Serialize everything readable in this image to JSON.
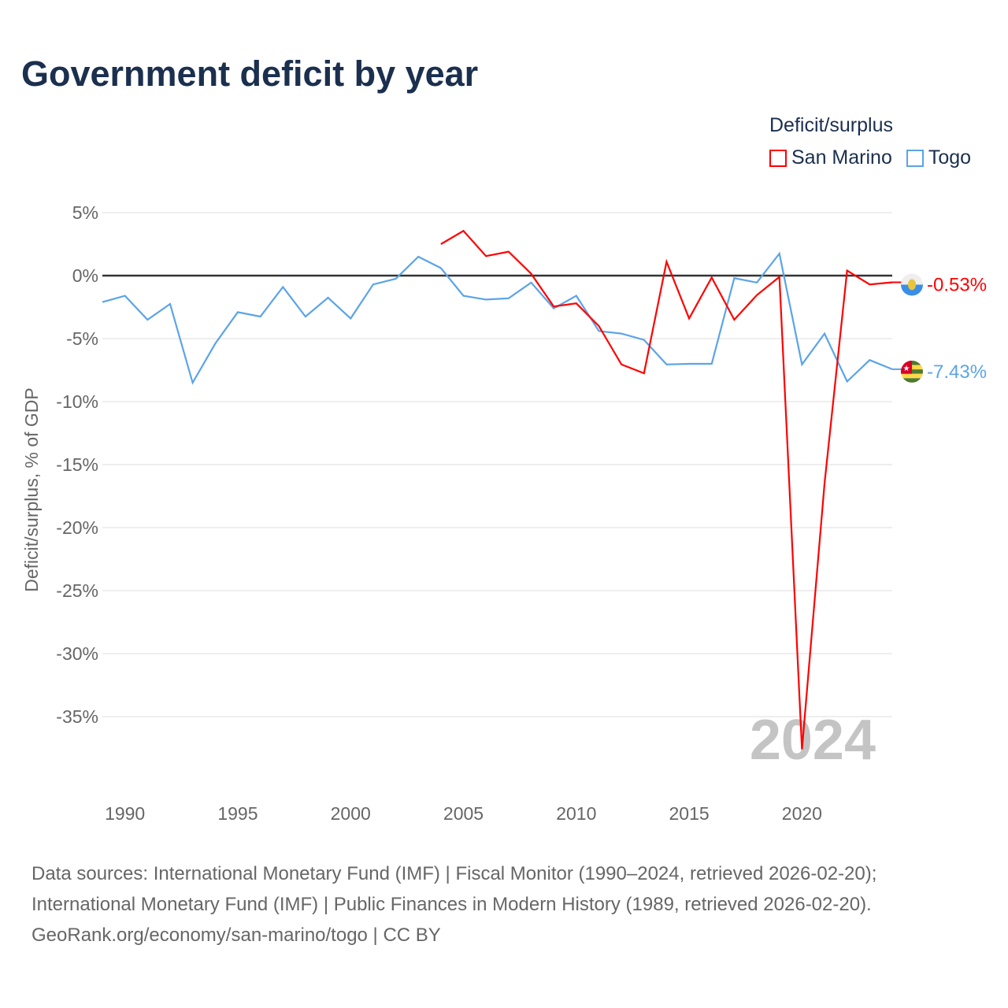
{
  "title": "Government deficit by year",
  "legend": {
    "title": "Deficit/surplus",
    "items": [
      "San Marino",
      "Togo"
    ]
  },
  "footer": {
    "line1": "Data sources: International Monetary Fund (IMF) | Fiscal Monitor (1990–2024, retrieved 2026-02-20);",
    "line2": "International Monetary Fund (IMF) | Public Finances in Modern History (1989, retrieved 2026-02-20).",
    "line3": "GeoRank.org/economy/san-marino/togo | CC BY"
  },
  "chart_data": {
    "type": "line",
    "title": "Government deficit by year",
    "xlabel": "",
    "ylabel": "Deficit/surplus, % of GDP",
    "xlim": [
      1989,
      2024
    ],
    "ylim": [
      -40,
      5
    ],
    "yticks": [
      5,
      0,
      -5,
      -10,
      -15,
      -20,
      -25,
      -30,
      -35
    ],
    "ytick_labels": [
      "5%",
      "0%",
      "-5%",
      "-10%",
      "-15%",
      "-20%",
      "-25%",
      "-30%",
      "-35%"
    ],
    "xticks": [
      1990,
      1995,
      2000,
      2005,
      2010,
      2015,
      2020
    ],
    "xtick_labels": [
      "1990",
      "1995",
      "2000",
      "2005",
      "2010",
      "2015",
      "2020"
    ],
    "year_watermark": "2024",
    "grid": true,
    "legend_position": "top-right",
    "series": [
      {
        "name": "San Marino",
        "color": "#ff0000",
        "end_label": "-0.53%",
        "flag": "san-marino-flag",
        "x": [
          2004,
          2005,
          2006,
          2007,
          2008,
          2009,
          2010,
          2011,
          2012,
          2013,
          2014,
          2015,
          2016,
          2017,
          2018,
          2019,
          2020,
          2021,
          2022,
          2023,
          2024
        ],
        "values": [
          2.5,
          3.55,
          1.55,
          1.9,
          0.15,
          -2.45,
          -2.2,
          -4.0,
          -7.05,
          -7.75,
          1.1,
          -3.4,
          -0.15,
          -3.5,
          -1.55,
          -0.1,
          -37.6,
          -16.5,
          0.4,
          -0.7,
          -0.53
        ]
      },
      {
        "name": "Togo",
        "color": "#5ba4e8",
        "end_label": "-7.43%",
        "flag": "togo-flag",
        "x": [
          1989,
          1990,
          1991,
          1992,
          1993,
          1994,
          1995,
          1996,
          1997,
          1998,
          1999,
          2000,
          2001,
          2002,
          2003,
          2004,
          2005,
          2006,
          2007,
          2008,
          2009,
          2010,
          2011,
          2012,
          2013,
          2014,
          2015,
          2016,
          2017,
          2018,
          2019,
          2020,
          2021,
          2022,
          2023,
          2024
        ],
        "values": [
          -2.1,
          -1.6,
          -3.5,
          -2.25,
          -8.5,
          -5.4,
          -2.9,
          -3.25,
          -0.9,
          -3.25,
          -1.75,
          -3.4,
          -0.7,
          -0.25,
          1.5,
          0.6,
          -1.6,
          -1.9,
          -1.8,
          -0.55,
          -2.6,
          -1.6,
          -4.4,
          -4.6,
          -5.1,
          -7.05,
          -7.0,
          -7.0,
          -0.2,
          -0.55,
          1.75,
          -7.05,
          -4.6,
          -8.4,
          -6.7,
          -7.43
        ]
      }
    ]
  }
}
